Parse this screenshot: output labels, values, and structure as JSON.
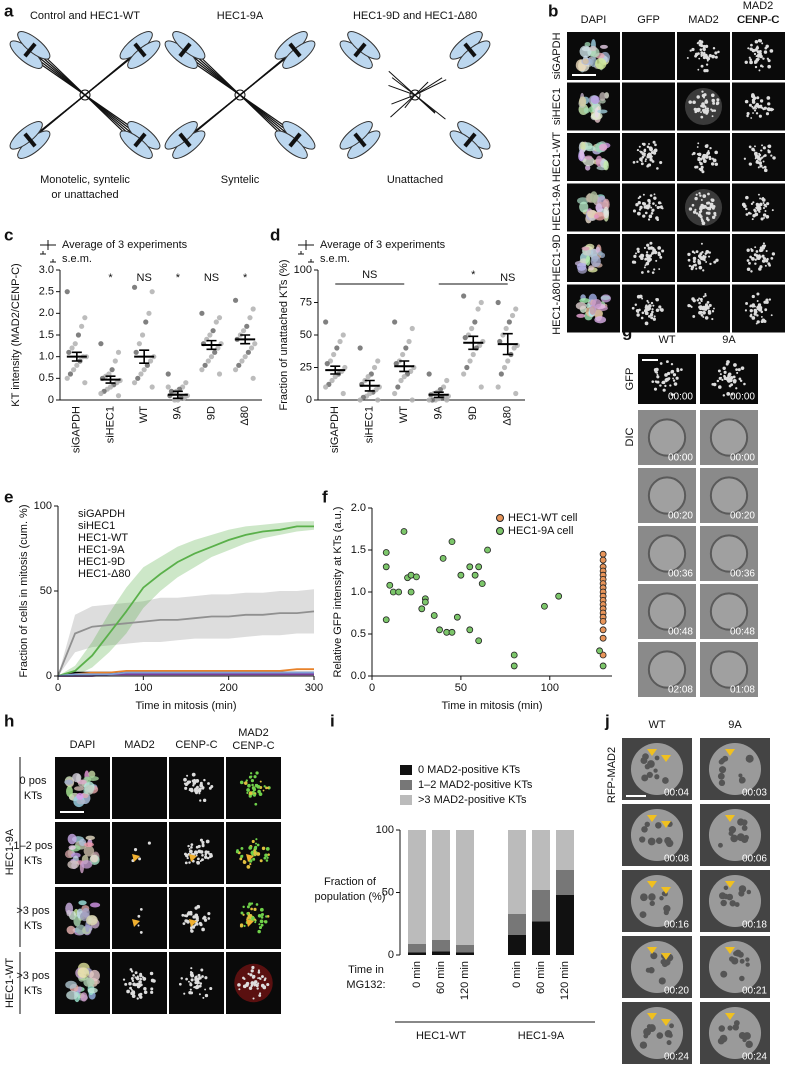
{
  "panel_labels": [
    "a",
    "b",
    "c",
    "d",
    "e",
    "f",
    "g",
    "h",
    "i",
    "j"
  ],
  "panel_a": {
    "titles": [
      "Control and HEC1-WT",
      "HEC1-9A",
      "HEC1-9D and HEC1-Δ80"
    ],
    "captions": [
      [
        "Monotelic, syntelic",
        "or unattached"
      ],
      [
        "Syntelic"
      ],
      [
        "Unattached"
      ]
    ]
  },
  "panel_b": {
    "columns": [
      "DAPI",
      "GFP",
      "MAD2",
      "CENP-C"
    ],
    "merge": [
      "MAD2",
      "CENP-C"
    ],
    "rows": [
      "siGAPDH",
      "siHEC1",
      "HEC1-WT",
      "HEC1-9A",
      "HEC1-9D",
      "HEC1-Δ80"
    ],
    "row_colors": [
      "#000000",
      "#909090",
      "#e8822a",
      "#5ab04a",
      "#7a3d9a",
      "#7f9fd8"
    ]
  },
  "panel_g": {
    "columns": [
      "WT",
      "9A"
    ],
    "column_colors": [
      "#e8822a",
      "#5ab04a"
    ],
    "rows": [
      "GFP",
      "DIC"
    ],
    "times": [
      [
        "00:00",
        "00:00",
        "00:20",
        "00:36",
        "00:48",
        "02:08"
      ],
      [
        "00:00",
        "00:00",
        "00:20",
        "00:36",
        "00:48",
        "01:08"
      ]
    ]
  },
  "panel_h": {
    "columns": [
      "DAPI",
      "MAD2",
      "CENP-C"
    ],
    "merge": [
      "MAD2",
      "CENP-C"
    ],
    "rows": [
      [
        "0 pos",
        "KTs"
      ],
      [
        "1–2 pos",
        "KTs"
      ],
      [
        ">3 pos",
        "KTs"
      ],
      [
        ">3 pos",
        "KTs"
      ]
    ],
    "groups": [
      {
        "name": "HEC1-9A",
        "color": "#5ab04a"
      },
      {
        "name": "HEC1-WT",
        "color": "#e8822a"
      }
    ]
  },
  "panel_j": {
    "columns": [
      "WT",
      "9A"
    ],
    "column_colors": [
      "#e8822a",
      "#5ab04a"
    ],
    "row_label": "RFP-MAD2",
    "times": [
      [
        "00:04",
        "00:08",
        "00:16",
        "00:20",
        "00:24"
      ],
      [
        "00:03",
        "00:06",
        "00:18",
        "00:21",
        "00:24"
      ]
    ]
  },
  "chart_data": [
    {
      "type": "dotplot",
      "y_label": "KT intensity (MAD2/CENP-C)",
      "legend": [
        "Average of 3 experiments",
        "s.e.m."
      ],
      "categories": [
        "siGAPDH",
        "siHEC1",
        "WT",
        "9A",
        "9D",
        "Δ80"
      ],
      "category_colors": [
        "#000000",
        "#909090",
        "#e8822a",
        "#5ab04a",
        "#7a3d9a",
        "#7f9fd8"
      ],
      "values": [
        1.0,
        0.47,
        1.0,
        0.12,
        1.27,
        1.4
      ],
      "errors": [
        0.1,
        0.08,
        0.15,
        0.08,
        0.1,
        0.1
      ],
      "annotations": [
        null,
        "*",
        "NS",
        "*",
        "NS",
        "*"
      ],
      "points": [
        [
          2.5,
          1.9,
          1.7,
          1.5,
          1.3,
          1.2,
          1.1,
          1.0,
          1.0,
          0.9,
          0.8,
          0.7,
          0.6,
          0.5,
          0.4
        ],
        [
          1.3,
          1.1,
          0.9,
          0.7,
          0.6,
          0.55,
          0.5,
          0.45,
          0.4,
          0.35,
          0.3,
          0.25,
          0.2,
          0.15,
          0.1
        ],
        [
          2.6,
          2.5,
          2.0,
          1.8,
          1.5,
          1.3,
          1.1,
          1.0,
          0.9,
          0.8,
          0.7,
          0.6,
          0.5,
          0.4,
          0.3
        ],
        [
          0.6,
          0.4,
          0.3,
          0.25,
          0.2,
          0.15,
          0.1,
          0.1,
          0.05,
          0.05,
          0,
          0,
          0.2,
          0.3,
          0.1
        ],
        [
          2.0,
          1.9,
          1.8,
          1.6,
          1.5,
          1.4,
          1.3,
          1.3,
          1.2,
          1.1,
          1.0,
          0.9,
          0.8,
          0.7,
          0.6
        ],
        [
          2.3,
          2.1,
          1.9,
          1.7,
          1.6,
          1.5,
          1.4,
          1.3,
          1.2,
          1.1,
          1.0,
          0.9,
          0.8,
          0.7,
          0.5
        ]
      ],
      "ylim": [
        0,
        3
      ],
      "yticks": [
        0,
        0.5,
        {
          "value": 1,
          "label": "1.0"
        },
        1.5,
        {
          "value": 2,
          "label": "2.0"
        },
        2.5,
        {
          "value": 3,
          "label": "3.0"
        }
      ]
    },
    {
      "type": "dotplot",
      "y_label": "Fraction of unattached KTs (%)",
      "legend": [
        "Average of 3 experiments",
        "s.e.m."
      ],
      "categories": [
        "siGAPDH",
        "siHEC1",
        "WT",
        "9A",
        "9D",
        "Δ80"
      ],
      "category_colors": [
        "#000000",
        "#909090",
        "#e8822a",
        "#5ab04a",
        "#7a3d9a",
        "#7f9fd8"
      ],
      "values": [
        23,
        11,
        26,
        4,
        44,
        43
      ],
      "errors": [
        3,
        4,
        4,
        2,
        5,
        8
      ],
      "annotations": [
        null,
        null,
        null,
        null,
        null,
        "NS"
      ],
      "brackets": [
        {
          "label": "NS",
          "from": 0,
          "to": 2
        },
        {
          "label": "*",
          "from": 3,
          "to": 5
        }
      ],
      "points": [
        [
          60,
          50,
          45,
          40,
          35,
          30,
          28,
          25,
          22,
          20,
          18,
          15,
          12,
          10,
          5
        ],
        [
          40,
          30,
          25,
          20,
          18,
          15,
          12,
          10,
          8,
          6,
          5,
          3,
          2,
          0,
          0
        ],
        [
          60,
          55,
          45,
          40,
          35,
          30,
          28,
          25,
          22,
          20,
          18,
          15,
          10,
          5,
          0
        ],
        [
          20,
          15,
          10,
          8,
          6,
          5,
          4,
          3,
          2,
          2,
          1,
          0,
          0,
          0,
          0
        ],
        [
          80,
          75,
          70,
          60,
          55,
          50,
          48,
          45,
          42,
          40,
          35,
          30,
          25,
          20,
          10
        ],
        [
          75,
          70,
          65,
          60,
          55,
          50,
          45,
          42,
          40,
          35,
          30,
          25,
          20,
          10,
          5
        ]
      ],
      "ylim": [
        0,
        100
      ],
      "yticks": [
        0,
        25,
        50,
        75,
        100
      ]
    },
    {
      "type": "line",
      "x_label": "Time in mitosis (min)",
      "y_label": "Fraction of cells in mitosis (cum. %)",
      "x": [
        0,
        20,
        40,
        60,
        80,
        100,
        120,
        140,
        160,
        180,
        200,
        220,
        240,
        260,
        280,
        300
      ],
      "series": [
        {
          "name": "siGAPDH",
          "color": "#000000",
          "values": [
            0,
            2,
            2,
            2,
            2,
            2,
            2,
            2,
            2,
            2,
            2,
            2,
            2,
            2,
            2,
            2
          ]
        },
        {
          "name": "siHEC1",
          "color": "#909090",
          "values": [
            0,
            25,
            29,
            30,
            31,
            32,
            33,
            33,
            34,
            35,
            35,
            36,
            36,
            37,
            37,
            38
          ],
          "lower": [
            0,
            14,
            17,
            18,
            19,
            20,
            20,
            21,
            22,
            22,
            22,
            23,
            24,
            24,
            25,
            25
          ],
          "upper": [
            0,
            36,
            41,
            42,
            43,
            44,
            46,
            46,
            47,
            48,
            48,
            49,
            49,
            50,
            50,
            51
          ]
        },
        {
          "name": "HEC1-WT",
          "color": "#e8822a",
          "values": [
            0,
            1,
            2,
            2,
            3,
            3,
            3,
            3,
            3,
            3,
            3,
            3,
            3,
            3,
            4,
            4
          ]
        },
        {
          "name": "HEC1-9A",
          "color": "#5ab04a",
          "values": [
            0,
            3,
            12,
            25,
            38,
            52,
            60,
            67,
            72,
            76,
            80,
            83,
            85,
            86,
            88,
            88
          ],
          "lower": [
            0,
            0,
            5,
            14,
            25,
            40,
            50,
            58,
            64,
            70,
            74,
            78,
            81,
            83,
            85,
            86
          ],
          "upper": [
            0,
            6,
            20,
            37,
            52,
            64,
            70,
            76,
            80,
            83,
            86,
            88,
            89,
            90,
            91,
            91
          ]
        },
        {
          "name": "HEC1-9D",
          "color": "#7a3d9a",
          "values": [
            0,
            0,
            0,
            1,
            1,
            1,
            1,
            1,
            1,
            1,
            1,
            1,
            1,
            1,
            1,
            1
          ]
        },
        {
          "name": "HEC1-Δ80",
          "color": "#7f9fd8",
          "values": [
            0,
            1,
            1,
            1,
            2,
            2,
            2,
            2,
            2,
            2,
            2,
            2,
            2,
            2,
            2,
            2
          ]
        }
      ],
      "xlim": [
        0,
        300
      ],
      "xticks": [
        0,
        100,
        200,
        300
      ],
      "ylim": [
        0,
        100
      ],
      "yticks": [
        0,
        50,
        100
      ]
    },
    {
      "type": "scatter",
      "x_label": "Time in mitosis (min)",
      "y_label": "Relative GFP intensity at KTs (a.u.)",
      "series": [
        {
          "name": "HEC1-WT cell",
          "color": "#e8955a",
          "x": [
            130,
            130,
            130,
            130,
            130,
            130,
            130,
            130,
            130,
            130,
            130,
            130,
            130,
            130,
            130,
            130,
            130,
            130,
            130
          ],
          "values": [
            1.45,
            1.38,
            1.3,
            1.25,
            1.2,
            1.15,
            1.1,
            1.05,
            1.0,
            0.95,
            0.9,
            0.85,
            0.8,
            0.75,
            0.7,
            0.65,
            0.55,
            0.45,
            0.25
          ]
        },
        {
          "name": "HEC1-9A cell",
          "color": "#7cc66a",
          "x": [
            8,
            8,
            8,
            10,
            12,
            15,
            18,
            20,
            22,
            22,
            25,
            28,
            30,
            30,
            35,
            38,
            40,
            42,
            45,
            45,
            48,
            50,
            55,
            55,
            58,
            60,
            60,
            62,
            65,
            80,
            80,
            97,
            105,
            128,
            130
          ],
          "values": [
            1.47,
            1.3,
            0.67,
            1.08,
            1.0,
            1.0,
            1.72,
            1.17,
            1.2,
            1.0,
            1.18,
            0.8,
            0.92,
            0.88,
            0.72,
            0.55,
            1.4,
            0.52,
            0.52,
            1.6,
            0.7,
            1.2,
            1.3,
            0.55,
            1.2,
            1.3,
            0.42,
            1.1,
            1.5,
            0.25,
            0.12,
            0.83,
            0.95,
            0.3,
            0.12
          ]
        }
      ],
      "xlim": [
        0,
        135
      ],
      "xticks": [
        0,
        50,
        100
      ],
      "ylim": [
        0,
        2
      ],
      "yticks": [
        {
          "value": 0,
          "label": "0.0"
        },
        0.5,
        {
          "value": 1,
          "label": "1.0"
        },
        1.5,
        {
          "value": 2,
          "label": "2.0"
        }
      ]
    },
    {
      "type": "stacked_bar",
      "y_label": [
        "Fraction of",
        "population (%)"
      ],
      "x_label": [
        "Time in",
        "MG132:"
      ],
      "categories": [
        "0 min",
        "60 min",
        "120 min",
        "0 min",
        "60 min",
        "120 min"
      ],
      "groups": [
        {
          "name": "HEC1-WT",
          "color": "#e8822a",
          "categories": [
            0,
            1,
            2
          ]
        },
        {
          "name": "HEC1-9A",
          "color": "#5ab04a",
          "categories": [
            3,
            4,
            5
          ]
        }
      ],
      "series": [
        {
          "name": "0 MAD2-positive KTs",
          "color": "#111111",
          "values": [
            2,
            3,
            2,
            16,
            27,
            48
          ]
        },
        {
          "name": "1–2 MAD2-positive KTs",
          "color": "#777777",
          "values": [
            7,
            9,
            6,
            17,
            25,
            20
          ]
        },
        {
          "name": ">3 MAD2-positive KTs",
          "color": "#bbbbbb",
          "values": [
            91,
            88,
            92,
            67,
            48,
            32
          ]
        }
      ],
      "ylim": [
        0,
        100
      ],
      "yticks": [
        0,
        50,
        100
      ]
    }
  ]
}
